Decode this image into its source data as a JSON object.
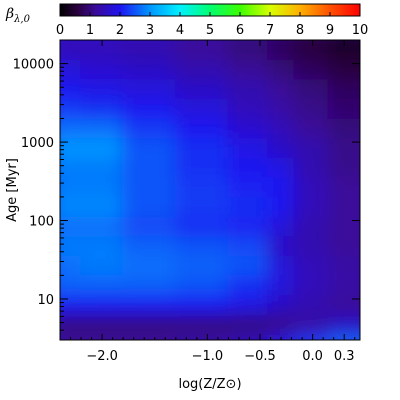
{
  "chart_data": {
    "type": "heatmap",
    "xlabel": "log(Z/Z⊙)",
    "ylabel": "Age [Myr]",
    "x_scale": "linear",
    "y_scale": "log",
    "xlim": [
      -2.4,
      0.45
    ],
    "ylim": [
      3,
      20000
    ],
    "x_ticks": [
      -2.0,
      -1.0,
      -0.5,
      0.0,
      0.3
    ],
    "x_tick_labels": [
      "−2.0",
      "−1.0",
      "−0.5",
      "0.0",
      "0.3"
    ],
    "y_ticks": [
      10,
      100,
      1000,
      10000
    ],
    "y_tick_labels": [
      "10",
      "100",
      "1000",
      "10000"
    ],
    "colorbar": {
      "label": "βλ,0",
      "label_main": "β",
      "label_sub": "λ,0",
      "range": [
        0,
        10
      ],
      "ticks": [
        0,
        1,
        2,
        3,
        4,
        5,
        6,
        7,
        8,
        9,
        10
      ],
      "tick_labels": [
        "0",
        "1",
        "2",
        "3",
        "4",
        "5",
        "6",
        "7",
        "8",
        "9",
        "10"
      ],
      "colormap": "rainbow (black-purple-blue-cyan-green-yellow-red)",
      "placement": "top"
    },
    "grid": false,
    "log_age_grid": [
      0.5,
      0.75,
      1.0,
      1.25,
      1.5,
      1.75,
      2.0,
      2.25,
      2.5,
      2.75,
      3.0,
      3.25,
      3.5,
      3.75,
      4.0,
      4.25
    ],
    "logZ_grid": [
      -2.3,
      -2.0,
      -1.5,
      -1.0,
      -0.5,
      -0.25,
      0.0,
      0.4
    ],
    "values": [
      [
        1.2,
        1.2,
        1.2,
        1.3,
        1.5,
        1.8,
        2.3,
        2.6
      ],
      [
        1.0,
        1.0,
        1.0,
        1.0,
        1.0,
        1.1,
        1.3,
        1.6
      ],
      [
        2.0,
        2.0,
        2.0,
        2.0,
        1.9,
        1.6,
        1.4,
        1.2
      ],
      [
        2.6,
        2.6,
        2.6,
        2.5,
        2.2,
        1.8,
        1.5,
        1.3
      ],
      [
        2.7,
        2.8,
        2.7,
        2.6,
        2.5,
        1.8,
        1.5,
        1.3
      ],
      [
        2.8,
        2.8,
        2.6,
        2.5,
        2.4,
        1.6,
        1.4,
        1.2
      ],
      [
        2.7,
        2.7,
        2.4,
        2.2,
        2.1,
        1.8,
        1.4,
        1.2
      ],
      [
        2.9,
        2.9,
        2.5,
        2.3,
        2.2,
        2.0,
        1.5,
        1.2
      ],
      [
        2.8,
        2.8,
        2.5,
        2.3,
        2.1,
        2.0,
        1.5,
        1.2
      ],
      [
        2.8,
        2.8,
        2.5,
        2.2,
        2.0,
        1.9,
        1.4,
        1.1
      ],
      [
        3.0,
        3.0,
        2.5,
        2.2,
        1.9,
        1.6,
        1.4,
        1.1
      ],
      [
        2.7,
        2.7,
        2.3,
        2.0,
        1.7,
        1.5,
        1.2,
        1.0
      ],
      [
        2.3,
        2.2,
        2.0,
        1.8,
        1.5,
        1.3,
        1.1,
        0.9
      ],
      [
        2.0,
        1.9,
        1.8,
        1.6,
        1.4,
        1.2,
        1.0,
        0.8
      ],
      [
        1.8,
        1.7,
        1.6,
        1.4,
        1.2,
        1.0,
        0.8,
        0.6
      ],
      [
        1.5,
        1.5,
        1.4,
        1.2,
        1.0,
        0.8,
        0.6,
        0.4
      ]
    ]
  }
}
